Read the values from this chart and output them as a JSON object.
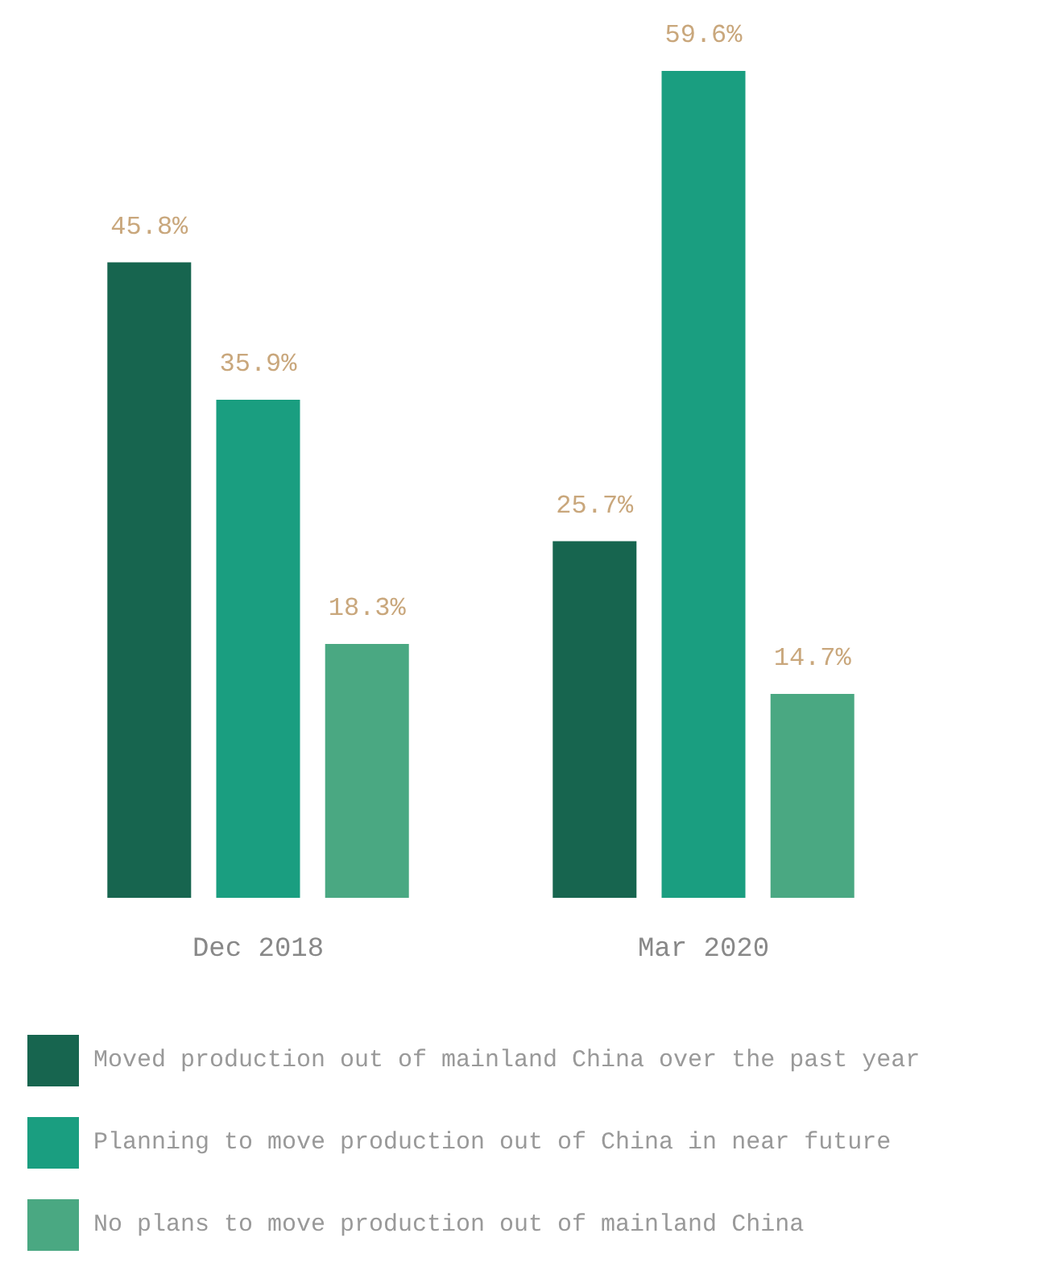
{
  "chart_data": {
    "type": "bar",
    "categories": [
      "Dec 2018",
      "Mar 2020"
    ],
    "series": [
      {
        "name": "Moved production out of mainland China over the past year",
        "color": "#17654f",
        "values": [
          45.8,
          25.7
        ],
        "value_labels": [
          "45.8%",
          "25.7%"
        ]
      },
      {
        "name": "Planning to move production out of China in near future",
        "color": "#1a9e80",
        "values": [
          35.9,
          59.6
        ],
        "value_labels": [
          "35.9%",
          "59.6%"
        ]
      },
      {
        "name": "No plans to move production out of mainland China",
        "color": "#4aa882",
        "values": [
          18.3,
          14.7
        ],
        "value_labels": [
          "18.3%",
          "14.7%"
        ]
      }
    ],
    "legend": "bottom"
  }
}
